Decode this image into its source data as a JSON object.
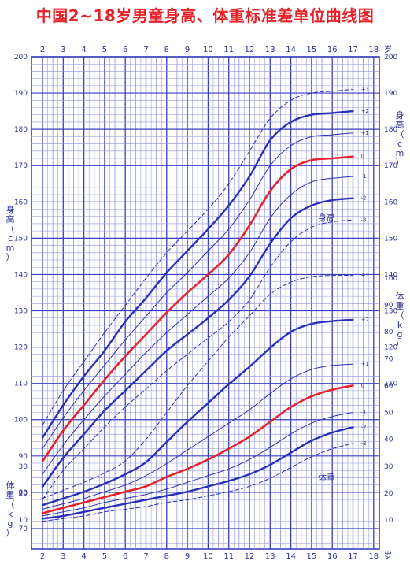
{
  "title": "中国2~18岁男童身高、体重标准差单位曲线图",
  "colors": {
    "grid": "#3a3fbf",
    "grid_minor": "#8e92e0",
    "line": "#2a2fb8",
    "median": "#e6232a",
    "text": "#2b2f9a",
    "title": "#e6232a"
  },
  "chart_data": [
    {
      "type": "line",
      "name": "height",
      "section_label": "身高",
      "ylabel_left": "身高（cm）",
      "ylabel_right": "身高（cm）",
      "xlabel_unit": "岁",
      "x_ticks": [
        2,
        3,
        4,
        5,
        6,
        7,
        8,
        9,
        10,
        11,
        12,
        13,
        14,
        15,
        16,
        17,
        18
      ],
      "left_ticks": [
        70,
        80,
        90,
        100,
        110,
        120,
        130,
        140,
        150,
        160,
        170,
        180,
        190,
        200
      ],
      "right_ticks": [
        110,
        120,
        130,
        140,
        150,
        160,
        170,
        180,
        190,
        200
      ],
      "ylim": [
        62,
        200
      ],
      "xlim": [
        2,
        18
      ],
      "x": [
        2,
        3,
        4,
        5,
        6,
        7,
        8,
        9,
        10,
        11,
        12,
        13,
        14,
        15,
        16,
        17
      ],
      "series": [
        {
          "sd": "+3",
          "label": "+3",
          "values": [
            98.5,
            108,
            116,
            124,
            131.5,
            139,
            146,
            152,
            158,
            165,
            174,
            183,
            188,
            190,
            190.5,
            191
          ]
        },
        {
          "sd": "+2",
          "label": "+2",
          "values": [
            95,
            104,
            112,
            119,
            127,
            133.5,
            140.5,
            146.5,
            152.5,
            159,
            167,
            177,
            182,
            184,
            184.5,
            185
          ]
        },
        {
          "sd": "+1",
          "label": "+1",
          "values": [
            92,
            100.5,
            108,
            115,
            122,
            128.5,
            135,
            140.5,
            146.5,
            152.5,
            160.5,
            170,
            175.5,
            178,
            178.5,
            179
          ]
        },
        {
          "sd": "0",
          "label": "0",
          "values": [
            88.5,
            97,
            104,
            111,
            117.5,
            123.5,
            129.5,
            135,
            140,
            145.5,
            153.5,
            163,
            169,
            171.5,
            172,
            172.5
          ]
        },
        {
          "sd": "-1",
          "label": "-1",
          "values": [
            85,
            93,
            100,
            106.5,
            112.5,
            118.5,
            124,
            129,
            134,
            139,
            146,
            155.5,
            162,
            165.5,
            166.5,
            167
          ]
        },
        {
          "sd": "-2",
          "label": "-2",
          "values": [
            81.5,
            89.5,
            96,
            102.5,
            108,
            113.5,
            119,
            123.5,
            128,
            133,
            139.5,
            148.5,
            155.5,
            159,
            160.5,
            161
          ]
        },
        {
          "sd": "-3",
          "label": "-3",
          "values": [
            78,
            86,
            92,
            98,
            103.5,
            108.5,
            113.5,
            118,
            122.5,
            127,
            133,
            142,
            149,
            153,
            154.5,
            155
          ]
        }
      ]
    },
    {
      "type": "line",
      "name": "weight",
      "section_label": "体重",
      "ylabel_left": "体重（kg）",
      "ylabel_right": "体重（kg）",
      "xlabel_unit": "岁",
      "x_ticks": [
        2,
        3,
        4,
        5,
        6,
        7,
        8,
        9,
        10,
        11,
        12,
        13,
        14,
        15,
        16,
        17,
        18
      ],
      "left_ticks": [
        10,
        20,
        30
      ],
      "right_ticks": [
        10,
        20,
        30,
        40,
        50,
        60,
        70,
        80,
        90,
        100
      ],
      "ylim": [
        3,
        113
      ],
      "xlim": [
        2,
        18
      ],
      "x": [
        2,
        3,
        4,
        5,
        6,
        7,
        8,
        9,
        10,
        11,
        12,
        13,
        14,
        15,
        16,
        17
      ],
      "series": [
        {
          "sd": "+3",
          "label": "+3",
          "values": [
            18,
            21,
            24,
            27.5,
            32,
            40,
            50,
            60,
            69,
            78,
            86,
            94,
            98.5,
            100.5,
            101,
            101
          ]
        },
        {
          "sd": "+2",
          "label": "+2",
          "values": [
            15.5,
            18,
            20.5,
            23.5,
            27,
            31.5,
            39,
            46.5,
            53.5,
            60.5,
            67,
            74,
            80,
            83,
            84,
            84.5
          ]
        },
        {
          "sd": "+1",
          "label": "+1",
          "values": [
            14,
            16,
            18,
            20.5,
            23,
            26.5,
            31,
            36,
            41,
            46,
            51,
            57,
            62.5,
            66,
            67.5,
            68
          ]
        },
        {
          "sd": "0",
          "label": "0",
          "values": [
            12.5,
            14.5,
            16.5,
            18.5,
            20.5,
            22.5,
            26,
            29,
            32.5,
            36.5,
            41,
            46.5,
            52,
            56,
            58.5,
            60
          ]
        },
        {
          "sd": "-1",
          "label": "-1",
          "values": [
            11.5,
            13,
            14.5,
            16.5,
            18,
            19.5,
            21.5,
            24,
            26.5,
            29,
            32.5,
            37,
            42,
            46,
            48.5,
            50
          ]
        },
        {
          "sd": "-2",
          "label": "-2",
          "values": [
            10.5,
            11.5,
            13,
            14.5,
            16,
            17.5,
            19,
            20.5,
            22.5,
            24.5,
            27,
            30.5,
            35,
            39.5,
            42.5,
            44.5
          ]
        },
        {
          "sd": "-3",
          "label": "-3",
          "values": [
            9.5,
            10.5,
            11.5,
            13,
            14,
            15,
            16.5,
            17.5,
            19,
            20.5,
            22.5,
            25.5,
            29.5,
            33.5,
            36.5,
            38.5
          ]
        }
      ]
    }
  ]
}
